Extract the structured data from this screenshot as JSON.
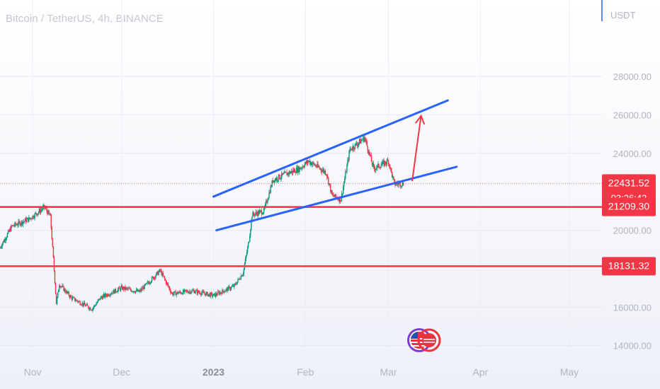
{
  "chart_data": {
    "type": "candlestick",
    "title": "Bitcoin / TetherUS, 4h, BINANCE",
    "currency": "USDT",
    "ylim": [
      13400,
      30500
    ],
    "y_ticks": [
      {
        "value": 28000,
        "label": "28000.00"
      },
      {
        "value": 26000,
        "label": "26000.00"
      },
      {
        "value": 24000,
        "label": "24000.00"
      },
      {
        "value": 20000,
        "label": "20000.00"
      },
      {
        "value": 16000,
        "label": "16000.00"
      },
      {
        "value": 14000,
        "label": "14000.00"
      }
    ],
    "x_range": [
      "2022-10-21",
      "2023-05-12"
    ],
    "x_ticks": [
      {
        "date": "2022-11-01",
        "label": "Nov"
      },
      {
        "date": "2022-12-01",
        "label": "Dec"
      },
      {
        "date": "2023-01-01",
        "label": "2023",
        "bold": true
      },
      {
        "date": "2023-02-01",
        "label": "Feb"
      },
      {
        "date": "2023-03-01",
        "label": "Mar"
      },
      {
        "date": "2023-04-01",
        "label": "Apr"
      },
      {
        "date": "2023-05-01",
        "label": "May"
      }
    ],
    "price_path": [
      {
        "date": "2022-10-21",
        "price": 19100
      },
      {
        "date": "2022-10-25",
        "price": 20200
      },
      {
        "date": "2022-10-31",
        "price": 20600
      },
      {
        "date": "2022-11-05",
        "price": 21200
      },
      {
        "date": "2022-11-07",
        "price": 20700
      },
      {
        "date": "2022-11-08",
        "price": 18500
      },
      {
        "date": "2022-11-09",
        "price": 16200
      },
      {
        "date": "2022-11-10",
        "price": 17200
      },
      {
        "date": "2022-11-14",
        "price": 16500
      },
      {
        "date": "2022-11-21",
        "price": 15900
      },
      {
        "date": "2022-11-24",
        "price": 16500
      },
      {
        "date": "2022-12-01",
        "price": 17000
      },
      {
        "date": "2022-12-07",
        "price": 16800
      },
      {
        "date": "2022-12-14",
        "price": 17900
      },
      {
        "date": "2022-12-18",
        "price": 16700
      },
      {
        "date": "2022-12-25",
        "price": 16850
      },
      {
        "date": "2023-01-01",
        "price": 16600
      },
      {
        "date": "2023-01-08",
        "price": 17100
      },
      {
        "date": "2023-01-11",
        "price": 17800
      },
      {
        "date": "2023-01-13",
        "price": 19500
      },
      {
        "date": "2023-01-14",
        "price": 20800
      },
      {
        "date": "2023-01-18",
        "price": 21000
      },
      {
        "date": "2023-01-21",
        "price": 22600
      },
      {
        "date": "2023-01-25",
        "price": 22900
      },
      {
        "date": "2023-01-30",
        "price": 23200
      },
      {
        "date": "2023-02-02",
        "price": 23600
      },
      {
        "date": "2023-02-08",
        "price": 23000
      },
      {
        "date": "2023-02-10",
        "price": 21800
      },
      {
        "date": "2023-02-13",
        "price": 21600
      },
      {
        "date": "2023-02-16",
        "price": 24200
      },
      {
        "date": "2023-02-21",
        "price": 24800
      },
      {
        "date": "2023-02-24",
        "price": 23200
      },
      {
        "date": "2023-03-01",
        "price": 23600
      },
      {
        "date": "2023-03-03",
        "price": 22400
      },
      {
        "date": "2023-03-06",
        "price": 22431.52
      }
    ],
    "horizontal_lines": [
      {
        "price": 21209.3,
        "label": "21209.30",
        "color": "#f23645"
      },
      {
        "price": 18131.32,
        "label": "18131.32",
        "color": "#f23645"
      }
    ],
    "channel_lines": [
      {
        "from": {
          "date": "2023-01-01",
          "price": 21750
        },
        "to": {
          "date": "2023-03-21",
          "price": 26750
        },
        "color": "#2962ff"
      },
      {
        "from": {
          "date": "2023-01-02",
          "price": 20000
        },
        "to": {
          "date": "2023-03-24",
          "price": 23300
        },
        "color": "#2962ff"
      }
    ],
    "arrow": {
      "from": {
        "date": "2023-03-09",
        "price": 22550
      },
      "to": {
        "date": "2023-03-12",
        "price": 25950
      },
      "color": "#f23645"
    },
    "last_price": {
      "price": 22431.52,
      "label": "22431.52",
      "countdown": "03:26:42",
      "color": "#f23645"
    },
    "up_color": "#089981",
    "down_color": "#f23645"
  }
}
